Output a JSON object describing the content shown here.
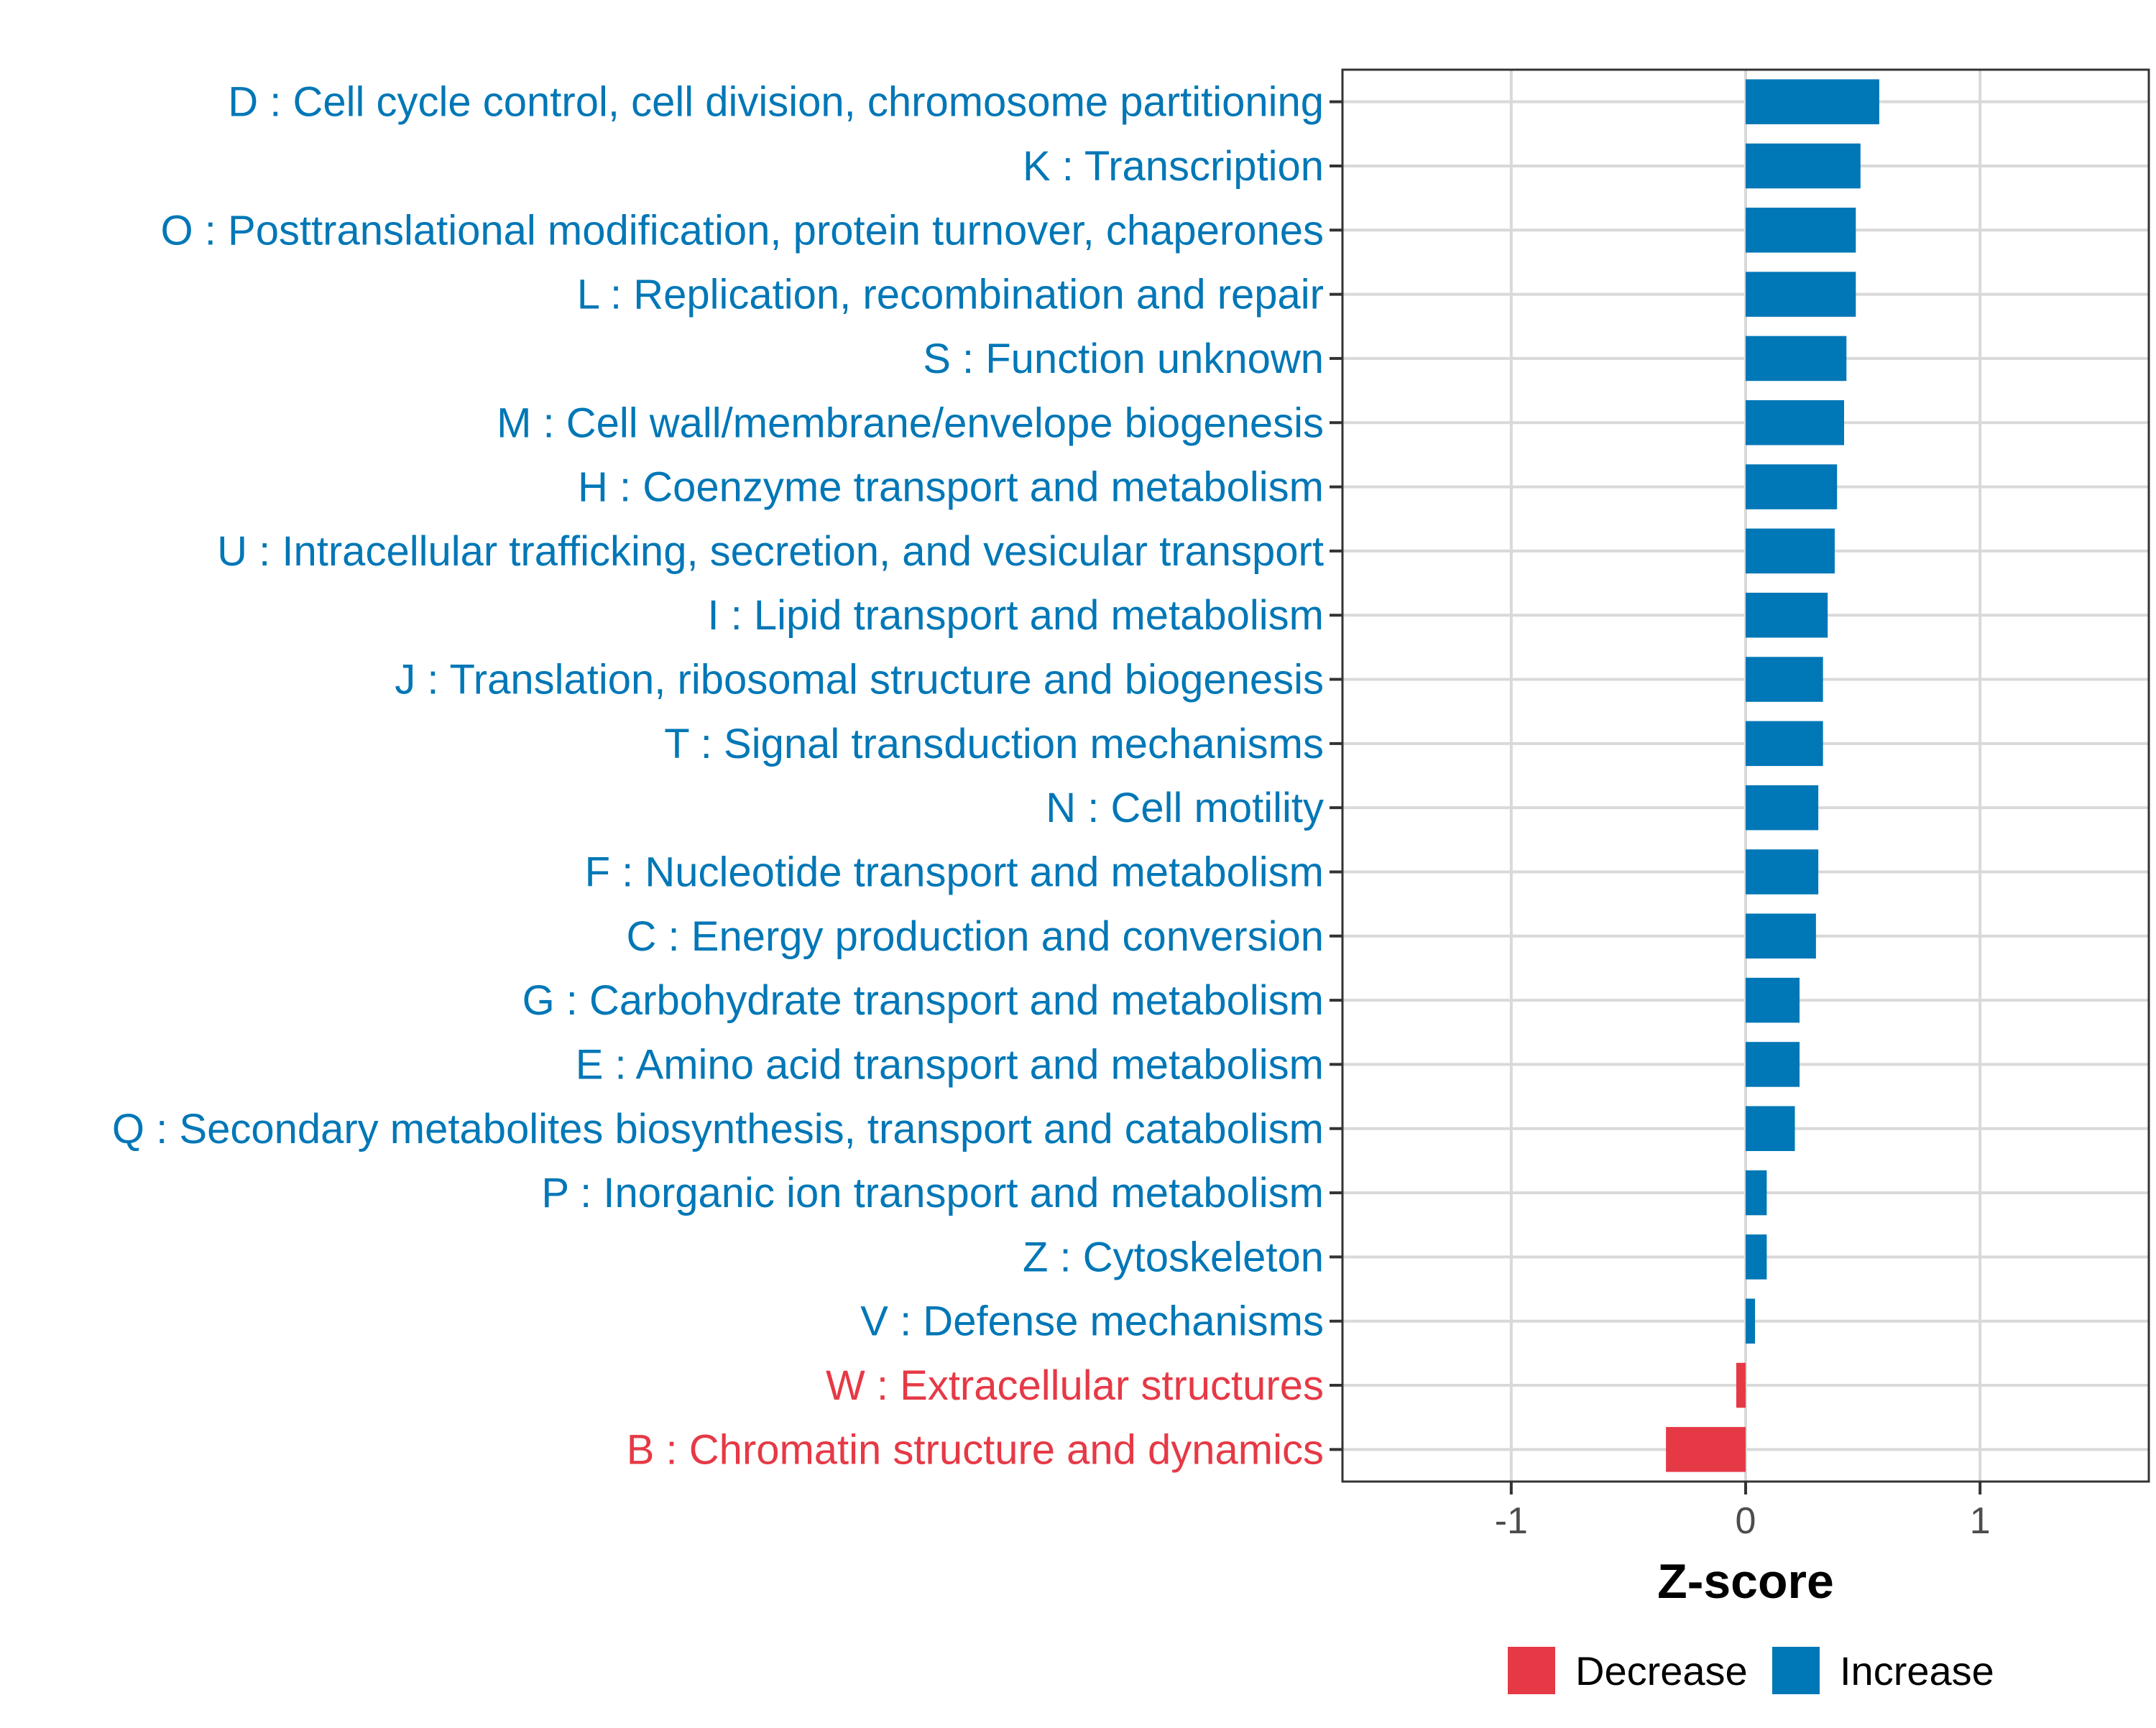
{
  "chart_data": {
    "type": "bar",
    "orientation": "horizontal",
    "title": "",
    "xlabel": "Z-score",
    "ylabel": "",
    "xlim": [
      -1.72,
      1.72
    ],
    "xticks": [
      -1,
      0,
      1
    ],
    "xtick_labels": [
      "-1",
      "0",
      "1"
    ],
    "grid": true,
    "legend_position": "bottom",
    "categories": [
      "D : Cell cycle control, cell division, chromosome partitioning",
      "K : Transcription",
      "O : Posttranslational modification, protein turnover, chaperones",
      "L : Replication, recombination and repair",
      "S : Function unknown",
      "M : Cell wall/membrane/envelope biogenesis",
      "H : Coenzyme transport and metabolism",
      "U : Intracellular trafficking, secretion, and vesicular transport",
      "I : Lipid transport and metabolism",
      "J : Translation, ribosomal structure and biogenesis",
      "T : Signal transduction mechanisms",
      "N : Cell motility",
      "F : Nucleotide transport and metabolism",
      "C : Energy production and conversion",
      "G : Carbohydrate transport and metabolism",
      "E : Amino acid transport and metabolism",
      "Q : Secondary metabolites biosynthesis, transport and catabolism",
      "P : Inorganic ion transport and metabolism",
      "Z : Cytoskeleton",
      "V : Defense mechanisms",
      "W : Extracellular structures",
      "B : Chromatin structure and dynamics"
    ],
    "values": [
      0.57,
      0.49,
      0.47,
      0.47,
      0.43,
      0.42,
      0.39,
      0.38,
      0.35,
      0.33,
      0.33,
      0.31,
      0.31,
      0.3,
      0.23,
      0.23,
      0.21,
      0.09,
      0.09,
      0.04,
      -0.04,
      -0.34
    ],
    "groups": [
      "Increase",
      "Increase",
      "Increase",
      "Increase",
      "Increase",
      "Increase",
      "Increase",
      "Increase",
      "Increase",
      "Increase",
      "Increase",
      "Increase",
      "Increase",
      "Increase",
      "Increase",
      "Increase",
      "Increase",
      "Increase",
      "Increase",
      "Increase",
      "Decrease",
      "Decrease"
    ],
    "legend": [
      {
        "name": "Decrease",
        "color": "#e63946"
      },
      {
        "name": "Increase",
        "color": "#0077b6"
      }
    ],
    "colors": {
      "Decrease": "#e63946",
      "Increase": "#0077b6"
    }
  }
}
